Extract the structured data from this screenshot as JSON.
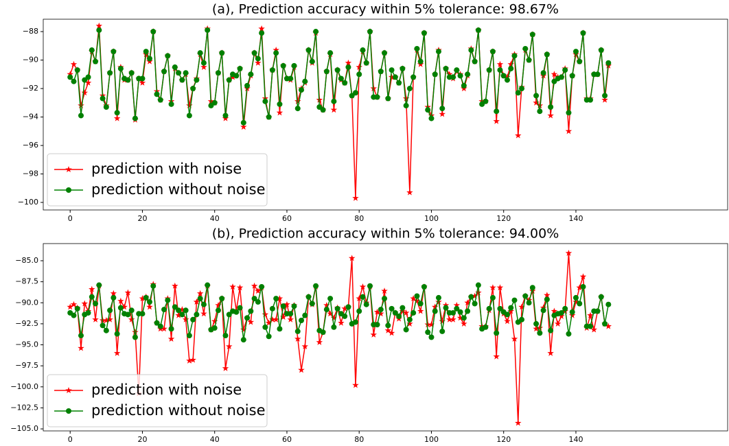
{
  "chart_data": [
    {
      "type": "line",
      "title": "(a), Prediction accuracy within 5% tolerance: 98.67%",
      "x": [
        0,
        1,
        2,
        3,
        4,
        5,
        6,
        7,
        8,
        9,
        10,
        11,
        12,
        13,
        14,
        15,
        16,
        17,
        18,
        19,
        20,
        21,
        22,
        23,
        24,
        25,
        26,
        27,
        28,
        29,
        30,
        31,
        32,
        33,
        34,
        35,
        36,
        37,
        38,
        39,
        40,
        41,
        42,
        43,
        44,
        45,
        46,
        47,
        48,
        49,
        50,
        51,
        52,
        53,
        54,
        55,
        56,
        57,
        58,
        59,
        60,
        61,
        62,
        63,
        64,
        65,
        66,
        67,
        68,
        69,
        70,
        71,
        72,
        73,
        74,
        75,
        76,
        77,
        78,
        79,
        80,
        81,
        82,
        83,
        84,
        85,
        86,
        87,
        88,
        89,
        90,
        91,
        92,
        93,
        94,
        95,
        96,
        97,
        98,
        99,
        100,
        101,
        102,
        103,
        104,
        105,
        106,
        107,
        108,
        109,
        110,
        111,
        112,
        113,
        114,
        115,
        116,
        117,
        118,
        119,
        120,
        121,
        122,
        123,
        124,
        125,
        126,
        127,
        128,
        129,
        130,
        131,
        132,
        133,
        134,
        135,
        136,
        137,
        138,
        139,
        140,
        141,
        142,
        143,
        144,
        145,
        146,
        147,
        148,
        149
      ],
      "xlim": [
        -7.45,
        182
      ],
      "xticks": [
        0,
        20,
        40,
        60,
        80,
        100,
        120,
        140
      ],
      "ylim": [
        -100.53,
        -87.13
      ],
      "yticks": [
        {
          "value": -100,
          "label": "−100"
        },
        {
          "value": -98,
          "label": "−98"
        },
        {
          "value": -96,
          "label": "−96"
        },
        {
          "value": -94,
          "label": "−94"
        },
        {
          "value": -92,
          "label": "−92"
        },
        {
          "value": -90,
          "label": "−90"
        },
        {
          "value": -88,
          "label": "−88"
        }
      ],
      "legend": "lower left",
      "series": [
        {
          "name": "prediction with noise",
          "color": "#ff0000",
          "marker": "star",
          "values": [
            -91.0,
            -90.3,
            -90.7,
            -93.2,
            -92.3,
            -91.6,
            -89.4,
            -90.1,
            -87.6,
            -92.5,
            -93.2,
            -90.9,
            -89.4,
            -94.1,
            -90.5,
            -91.4,
            -91.4,
            -90.9,
            -94.2,
            -91.3,
            -91.6,
            -89.6,
            -90.1,
            -88.0,
            -92.2,
            -92.8,
            -90.8,
            -89.7,
            -92.9,
            -90.6,
            -90.9,
            -91.4,
            -91.0,
            -93.2,
            -92.0,
            -91.3,
            -89.6,
            -90.5,
            -87.8,
            -92.9,
            -93.0,
            -90.9,
            -89.5,
            -94.1,
            -91.4,
            -91.2,
            -91.1,
            -90.6,
            -94.7,
            -92.0,
            -91.1,
            -89.5,
            -90.2,
            -87.8,
            -92.7,
            -94.0,
            -90.7,
            -89.3,
            -93.7,
            -90.4,
            -91.3,
            -91.4,
            -90.5,
            -92.9,
            -92.0,
            -91.6,
            -89.3,
            -90.2,
            -88.1,
            -92.8,
            -93.5,
            -90.8,
            -89.6,
            -93.5,
            -90.7,
            -91.4,
            -91.6,
            -90.2,
            -92.5,
            -99.7,
            -90.5,
            -89.4,
            -90.2,
            -88.0,
            -92.0,
            -92.6,
            -90.8,
            -89.5,
            -92.7,
            -91.2,
            -91.2,
            -91.6,
            -90.6,
            -92.7,
            -99.3,
            -91.2,
            -89.3,
            -90.3,
            -88.1,
            -93.3,
            -93.9,
            -91.0,
            -89.3,
            -93.8,
            -90.6,
            -91.0,
            -91.3,
            -90.8,
            -91.0,
            -92.0,
            -91.1,
            -89.2,
            -90.1,
            -87.9,
            -92.9,
            -92.9,
            -90.7,
            -89.4,
            -94.3,
            -90.3,
            -91.1,
            -91.2,
            -90.3,
            -89.6,
            -95.3,
            -91.9,
            -89.3,
            -90.0,
            -88.2,
            -93.0,
            -93.2,
            -91.1,
            -89.6,
            -93.9,
            -91.0,
            -91.2,
            -91.2,
            -90.6,
            -95.0,
            -91.1,
            -89.6,
            -90.1,
            -88.1,
            -92.7,
            -92.7,
            -91.0,
            -91.0,
            -89.3,
            -92.8,
            -90.4
          ]
        },
        {
          "name": "prediction without noise",
          "color": "#008000",
          "marker": "circle",
          "values": [
            -91.2,
            -91.5,
            -90.7,
            -93.9,
            -91.4,
            -91.2,
            -89.3,
            -90.1,
            -87.9,
            -92.7,
            -93.3,
            -90.9,
            -89.4,
            -93.7,
            -90.6,
            -91.3,
            -91.4,
            -90.9,
            -94.1,
            -91.3,
            -91.3,
            -89.4,
            -89.9,
            -88.0,
            -92.4,
            -92.8,
            -90.8,
            -89.7,
            -93.1,
            -90.5,
            -90.9,
            -91.4,
            -90.9,
            -93.9,
            -92.0,
            -91.4,
            -89.5,
            -90.2,
            -87.9,
            -93.2,
            -93.0,
            -90.9,
            -89.5,
            -93.9,
            -91.4,
            -91.0,
            -91.1,
            -90.6,
            -94.4,
            -91.8,
            -91.0,
            -89.5,
            -89.9,
            -88.1,
            -92.9,
            -94.0,
            -90.7,
            -89.5,
            -93.1,
            -90.4,
            -91.3,
            -91.3,
            -90.4,
            -93.4,
            -92.1,
            -91.5,
            -89.3,
            -90.1,
            -88.0,
            -93.3,
            -93.5,
            -90.8,
            -89.5,
            -92.9,
            -90.7,
            -91.3,
            -91.6,
            -90.5,
            -92.5,
            -92.3,
            -91.0,
            -89.3,
            -90.2,
            -88.0,
            -92.6,
            -92.6,
            -90.8,
            -89.5,
            -92.7,
            -90.7,
            -91.2,
            -91.6,
            -90.6,
            -93.2,
            -92.0,
            -91.2,
            -89.2,
            -90.1,
            -88.1,
            -93.5,
            -94.1,
            -91.0,
            -89.4,
            -93.4,
            -90.6,
            -91.2,
            -91.2,
            -90.7,
            -91.1,
            -91.8,
            -91.0,
            -89.3,
            -90.1,
            -87.9,
            -93.1,
            -92.9,
            -90.7,
            -89.4,
            -93.6,
            -90.7,
            -91.1,
            -91.4,
            -90.6,
            -89.7,
            -92.3,
            -92.0,
            -89.2,
            -90.0,
            -88.2,
            -92.5,
            -93.6,
            -90.9,
            -89.6,
            -93.3,
            -91.5,
            -91.3,
            -91.2,
            -90.7,
            -93.7,
            -91.1,
            -89.4,
            -90.1,
            -88.1,
            -92.8,
            -92.8,
            -91.0,
            -91.0,
            -89.3,
            -92.5,
            -90.2
          ]
        }
      ]
    },
    {
      "type": "line",
      "title": "(b), Prediction accuracy within 5% tolerance: 94.00%",
      "x": [
        0,
        1,
        2,
        3,
        4,
        5,
        6,
        7,
        8,
        9,
        10,
        11,
        12,
        13,
        14,
        15,
        16,
        17,
        18,
        19,
        20,
        21,
        22,
        23,
        24,
        25,
        26,
        27,
        28,
        29,
        30,
        31,
        32,
        33,
        34,
        35,
        36,
        37,
        38,
        39,
        40,
        41,
        42,
        43,
        44,
        45,
        46,
        47,
        48,
        49,
        50,
        51,
        52,
        53,
        54,
        55,
        56,
        57,
        58,
        59,
        60,
        61,
        62,
        63,
        64,
        65,
        66,
        67,
        68,
        69,
        70,
        71,
        72,
        73,
        74,
        75,
        76,
        77,
        78,
        79,
        80,
        81,
        82,
        83,
        84,
        85,
        86,
        87,
        88,
        89,
        90,
        91,
        92,
        93,
        94,
        95,
        96,
        97,
        98,
        99,
        100,
        101,
        102,
        103,
        104,
        105,
        106,
        107,
        108,
        109,
        110,
        111,
        112,
        113,
        114,
        115,
        116,
        117,
        118,
        119,
        120,
        121,
        122,
        123,
        124,
        125,
        126,
        127,
        128,
        129,
        130,
        131,
        132,
        133,
        134,
        135,
        136,
        137,
        138,
        139,
        140,
        141,
        142,
        143,
        144,
        145,
        146,
        147,
        148,
        149
      ],
      "xlim": [
        -7.45,
        182
      ],
      "xticks": [
        0,
        20,
        40,
        60,
        80,
        100,
        120,
        140
      ],
      "ylim": [
        -105.24,
        -82.96
      ],
      "yticks": [
        {
          "value": -105,
          "label": "−105.0"
        },
        {
          "value": -102.5,
          "label": "−102.5"
        },
        {
          "value": -100,
          "label": "−100.0"
        },
        {
          "value": -97.5,
          "label": "−97.5"
        },
        {
          "value": -95,
          "label": "−95.0"
        },
        {
          "value": -92.5,
          "label": "−92.5"
        },
        {
          "value": -90,
          "label": "−90.0"
        },
        {
          "value": -87.5,
          "label": "−87.5"
        },
        {
          "value": -85,
          "label": "−85.0"
        }
      ],
      "legend": "lower left",
      "series": [
        {
          "name": "prediction with noise",
          "color": "#ff0000",
          "marker": "star",
          "values": [
            -90.5,
            -90.2,
            -90.6,
            -95.4,
            -90.1,
            -91.0,
            -88.4,
            -92.0,
            -88.0,
            -92.1,
            -92.1,
            -92.0,
            -88.9,
            -96.0,
            -89.8,
            -90.5,
            -88.8,
            -92.0,
            -93.5,
            -100.8,
            -89.5,
            -89.3,
            -90.5,
            -87.8,
            -92.4,
            -93.1,
            -93.1,
            -89.5,
            -94.3,
            -88.0,
            -91.5,
            -90.8,
            -92.0,
            -96.9,
            -96.8,
            -89.9,
            -88.9,
            -91.3,
            -88.0,
            -93.2,
            -92.2,
            -90.3,
            -89.5,
            -97.8,
            -95.2,
            -88.1,
            -90.9,
            -88.2,
            -93.2,
            -91.8,
            -92.3,
            -88.0,
            -88.6,
            -88.2,
            -91.4,
            -92.4,
            -92.0,
            -92.0,
            -89.5,
            -91.7,
            -90.2,
            -92.0,
            -90.3,
            -94.3,
            -98.0,
            -95.2,
            -89.3,
            -90.2,
            -88.1,
            -94.7,
            -93.5,
            -90.3,
            -91.3,
            -91.8,
            -90.6,
            -92.4,
            -90.7,
            -90.5,
            -84.7,
            -99.8,
            -89.5,
            -88.1,
            -90.0,
            -88.1,
            -93.8,
            -91.1,
            -91.3,
            -88.6,
            -93.3,
            -93.6,
            -91.2,
            -91.9,
            -91.0,
            -91.2,
            -92.5,
            -89.5,
            -89.8,
            -91.0,
            -88.1,
            -92.6,
            -92.6,
            -90.5,
            -89.9,
            -92.2,
            -90.3,
            -92.0,
            -92.0,
            -90.3,
            -91.8,
            -92.5,
            -90.0,
            -89.3,
            -89.2,
            -88.8,
            -92.8,
            -92.8,
            -90.9,
            -88.2,
            -96.4,
            -88.2,
            -91.3,
            -92.2,
            -91.0,
            -94.3,
            -104.3,
            -90.5,
            -89.2,
            -89.7,
            -88.6,
            -93.1,
            -93.0,
            -90.6,
            -89.1,
            -96.0,
            -91.0,
            -92.5,
            -91.6,
            -91.0,
            -84.1,
            -91.5,
            -89.9,
            -88.2,
            -86.9,
            -93.0,
            -91.5,
            -93.2,
            -91.0,
            -89.3,
            -92.5,
            -92.8
          ]
        },
        {
          "name": "prediction without noise",
          "color": "#008000",
          "marker": "circle",
          "values": [
            -91.2,
            -91.5,
            -90.7,
            -93.9,
            -91.4,
            -91.2,
            -89.3,
            -90.1,
            -87.9,
            -92.7,
            -93.3,
            -90.9,
            -89.4,
            -93.7,
            -90.6,
            -91.3,
            -91.4,
            -90.9,
            -94.1,
            -91.3,
            -91.3,
            -89.4,
            -89.9,
            -88.0,
            -92.4,
            -92.8,
            -90.8,
            -89.7,
            -93.1,
            -90.5,
            -90.9,
            -91.4,
            -90.9,
            -93.9,
            -92.0,
            -91.4,
            -89.5,
            -90.2,
            -87.9,
            -93.2,
            -93.0,
            -90.9,
            -89.5,
            -93.9,
            -91.4,
            -91.0,
            -91.1,
            -90.6,
            -94.4,
            -91.8,
            -91.0,
            -89.5,
            -89.9,
            -88.1,
            -92.9,
            -94.0,
            -90.7,
            -89.5,
            -93.1,
            -90.4,
            -91.3,
            -91.3,
            -90.4,
            -93.4,
            -92.1,
            -91.5,
            -89.3,
            -90.1,
            -88.0,
            -93.3,
            -93.5,
            -90.8,
            -89.5,
            -92.9,
            -90.7,
            -91.3,
            -91.6,
            -90.5,
            -92.5,
            -92.3,
            -91.0,
            -89.3,
            -90.2,
            -88.0,
            -92.6,
            -92.6,
            -90.8,
            -89.5,
            -92.7,
            -90.7,
            -91.2,
            -91.6,
            -90.6,
            -93.2,
            -92.0,
            -91.2,
            -89.2,
            -90.1,
            -88.1,
            -93.5,
            -94.1,
            -91.0,
            -89.4,
            -93.4,
            -90.6,
            -91.2,
            -91.2,
            -90.7,
            -91.1,
            -91.8,
            -91.0,
            -89.3,
            -90.1,
            -87.9,
            -93.1,
            -92.9,
            -90.7,
            -89.4,
            -93.6,
            -90.7,
            -91.1,
            -91.4,
            -90.6,
            -89.7,
            -92.3,
            -92.0,
            -89.2,
            -90.0,
            -88.2,
            -92.5,
            -93.6,
            -90.9,
            -89.6,
            -93.3,
            -91.5,
            -91.3,
            -91.2,
            -90.7,
            -93.7,
            -91.1,
            -89.4,
            -90.1,
            -88.1,
            -92.8,
            -92.8,
            -91.0,
            -91.0,
            -89.3,
            -92.5,
            -90.2
          ]
        }
      ]
    }
  ]
}
